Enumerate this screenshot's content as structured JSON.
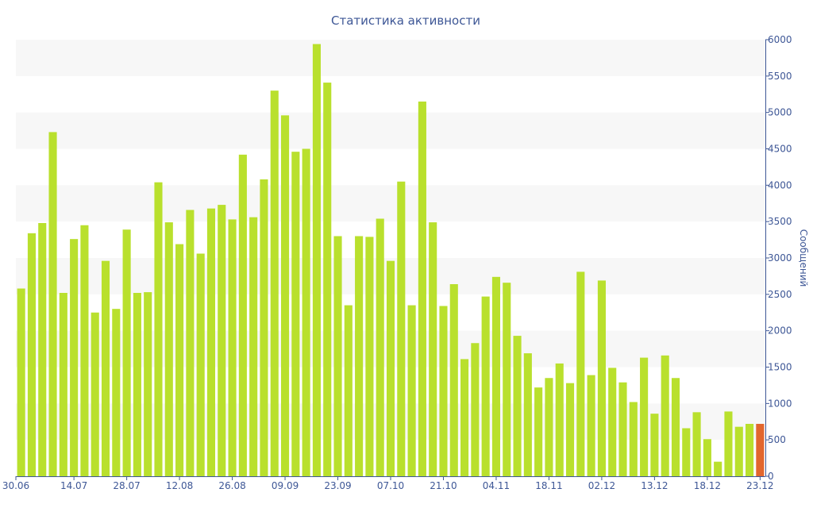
{
  "chart_data": {
    "type": "bar",
    "title": "Статистика активности",
    "ylabel": "Сообщений",
    "ylim": [
      0,
      6000
    ],
    "y_ticks": [
      0,
      500,
      1000,
      1500,
      2000,
      2500,
      3000,
      3500,
      4000,
      4500,
      5000,
      5500,
      6000
    ],
    "y_axis_position": "right",
    "x_tick_labels": [
      {
        "label": "30.06",
        "index": 0
      },
      {
        "label": "14.07",
        "index": 5.5
      },
      {
        "label": "28.07",
        "index": 10.5
      },
      {
        "label": "12.08",
        "index": 15.5
      },
      {
        "label": "26.08",
        "index": 20.5
      },
      {
        "label": "09.09",
        "index": 25.5
      },
      {
        "label": "23.09",
        "index": 30.5
      },
      {
        "label": "07.10",
        "index": 35.5
      },
      {
        "label": "21.10",
        "index": 40.5
      },
      {
        "label": "04.11",
        "index": 45.5
      },
      {
        "label": "18.11",
        "index": 50.5
      },
      {
        "label": "02.12",
        "index": 55.5
      },
      {
        "label": "13.12",
        "index": 60.5
      },
      {
        "label": "18.12",
        "index": 65.5
      },
      {
        "label": "23.12",
        "index": 70.5
      }
    ],
    "values": [
      2580,
      3340,
      3480,
      4730,
      2520,
      3260,
      3450,
      2250,
      2960,
      2300,
      3390,
      2520,
      2530,
      4040,
      3490,
      3190,
      3660,
      3060,
      3680,
      3730,
      3530,
      4420,
      3560,
      4080,
      5300,
      4960,
      4460,
      4500,
      5940,
      5410,
      3300,
      2350,
      3300,
      3290,
      3540,
      2960,
      4050,
      2350,
      5150,
      3490,
      2340,
      2640,
      1610,
      1830,
      2470,
      2740,
      2660,
      1930,
      1690,
      1220,
      1350,
      1550,
      1280,
      2810,
      1390,
      2690,
      1490,
      1290,
      1020,
      1630,
      860,
      1660,
      1350,
      660,
      880,
      510,
      200,
      890,
      680,
      720,
      720
    ],
    "bar_color": "#b9e02d",
    "highlight_color": "#e2662d",
    "highlight_index": 70,
    "grid": true,
    "grid_band_color": "#f7f7f7",
    "axis_color": "#3e5796"
  }
}
